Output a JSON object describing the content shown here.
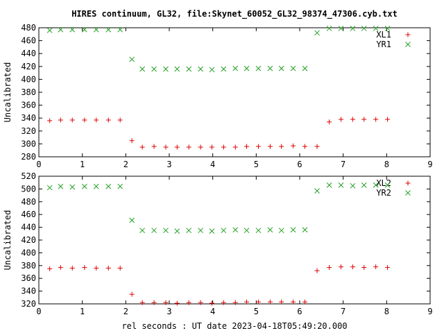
{
  "title": "HIRES continuum, GL32, file:Skynet_60052_GL32_98374_47306.cyb.txt",
  "xlabel": "rel seconds : UT date 2023-04-18T05:49:20.000",
  "colors": {
    "xl": "#e00000",
    "yr": "#20a020",
    "axis": "#000000"
  },
  "chart_data": [
    {
      "type": "scatter",
      "ylabel": "Uncalibrated",
      "xlim": [
        0,
        9
      ],
      "ylim": [
        280,
        480
      ],
      "x_ticks": [
        0,
        1,
        2,
        3,
        4,
        5,
        6,
        7,
        8,
        9
      ],
      "y_ticks": [
        280,
        300,
        320,
        340,
        360,
        380,
        400,
        420,
        440,
        460,
        480
      ],
      "legend_position": "top-right",
      "series": [
        {
          "name": "XL1",
          "marker": "plus",
          "color_key": "xl",
          "x": [
            0.25,
            0.5,
            0.77,
            1.05,
            1.32,
            1.6,
            1.87,
            2.14,
            2.38,
            2.65,
            2.92,
            3.18,
            3.45,
            3.72,
            3.98,
            4.25,
            4.52,
            4.78,
            5.05,
            5.32,
            5.58,
            5.85,
            6.12,
            6.4,
            6.68,
            6.95,
            7.22,
            7.48,
            7.75,
            8.02
          ],
          "y": [
            336,
            337,
            337,
            337,
            337,
            337,
            337,
            305,
            295,
            296,
            295,
            295,
            295,
            295,
            295,
            295,
            295,
            296,
            296,
            296,
            296,
            297,
            296,
            296,
            334,
            338,
            338,
            338,
            338,
            338
          ]
        },
        {
          "name": "YR1",
          "marker": "cross",
          "color_key": "yr",
          "x": [
            0.25,
            0.5,
            0.77,
            1.05,
            1.32,
            1.6,
            1.87,
            2.14,
            2.38,
            2.65,
            2.92,
            3.18,
            3.45,
            3.72,
            3.98,
            4.25,
            4.52,
            4.78,
            5.05,
            5.32,
            5.58,
            5.85,
            6.12,
            6.4,
            6.68,
            6.95,
            7.22,
            7.48,
            7.75,
            8.02
          ],
          "y": [
            476,
            477,
            477,
            477,
            477,
            477,
            477,
            431,
            416,
            416,
            416,
            416,
            416,
            416,
            415,
            416,
            417,
            417,
            417,
            417,
            417,
            417,
            417,
            472,
            479,
            479,
            479,
            479,
            479,
            479
          ]
        }
      ]
    },
    {
      "type": "scatter",
      "ylabel": "Uncalibrated",
      "xlim": [
        0,
        9
      ],
      "ylim": [
        320,
        520
      ],
      "x_ticks": [
        0,
        1,
        2,
        3,
        4,
        5,
        6,
        7,
        8,
        9
      ],
      "y_ticks": [
        320,
        340,
        360,
        380,
        400,
        420,
        440,
        460,
        480,
        500,
        520
      ],
      "legend_position": "top-right",
      "series": [
        {
          "name": "XL2",
          "marker": "plus",
          "color_key": "xl",
          "x": [
            0.25,
            0.5,
            0.77,
            1.05,
            1.32,
            1.6,
            1.87,
            2.14,
            2.38,
            2.65,
            2.92,
            3.18,
            3.45,
            3.72,
            3.98,
            4.25,
            4.52,
            4.78,
            5.05,
            5.32,
            5.58,
            5.85,
            6.12,
            6.4,
            6.68,
            6.95,
            7.22,
            7.48,
            7.75,
            8.02
          ],
          "y": [
            375,
            377,
            376,
            377,
            376,
            376,
            376,
            335,
            322,
            322,
            322,
            321,
            322,
            322,
            321,
            322,
            322,
            323,
            323,
            323,
            323,
            323,
            323,
            372,
            377,
            378,
            378,
            377,
            378,
            377
          ]
        },
        {
          "name": "YR2",
          "marker": "cross",
          "color_key": "yr",
          "x": [
            0.25,
            0.5,
            0.77,
            1.05,
            1.32,
            1.6,
            1.87,
            2.14,
            2.38,
            2.65,
            2.92,
            3.18,
            3.45,
            3.72,
            3.98,
            4.25,
            4.52,
            4.78,
            5.05,
            5.32,
            5.58,
            5.85,
            6.12,
            6.4,
            6.68,
            6.95,
            7.22,
            7.48,
            7.75,
            8.02
          ],
          "y": [
            502,
            504,
            503,
            504,
            504,
            504,
            504,
            451,
            435,
            435,
            435,
            434,
            435,
            435,
            434,
            435,
            436,
            435,
            435,
            436,
            435,
            436,
            436,
            497,
            506,
            506,
            505,
            506,
            506,
            506
          ]
        }
      ]
    }
  ]
}
